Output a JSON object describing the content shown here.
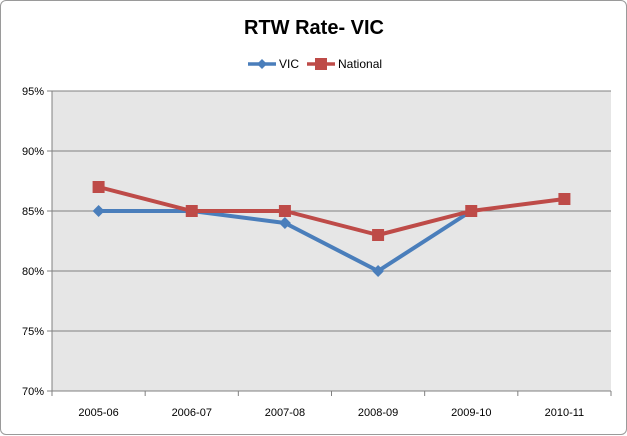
{
  "chart_data": {
    "type": "line",
    "title": "RTW Rate- VIC",
    "xlabel": "",
    "ylabel": "",
    "categories": [
      "2005-06",
      "2006-07",
      "2007-08",
      "2008-09",
      "2009-10",
      "2010-11"
    ],
    "series": [
      {
        "name": "VIC",
        "values": [
          85,
          85,
          84,
          80,
          85,
          null
        ],
        "color": "#4a7ebb",
        "marker": "diamond"
      },
      {
        "name": "National",
        "values": [
          87,
          85,
          85,
          83,
          85,
          86
        ],
        "color": "#be4b48",
        "marker": "square"
      }
    ],
    "ylim": [
      70,
      95
    ],
    "yticks": [
      70,
      75,
      80,
      85,
      90,
      95
    ],
    "ytick_labels": [
      "70%",
      "75%",
      "80%",
      "85%",
      "90%",
      "95%"
    ],
    "grid": true,
    "legend_position": "top",
    "plot_background": "#e6e6e6",
    "gridline_color": "#808080"
  }
}
